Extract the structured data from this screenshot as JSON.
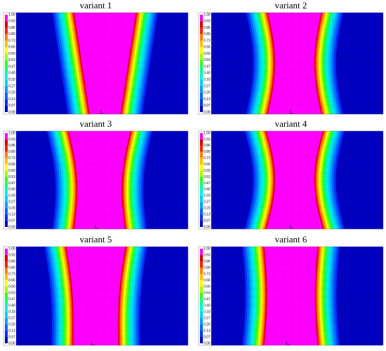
{
  "panels": [
    {
      "title": "variant 1"
    },
    {
      "title": "variant 2"
    },
    {
      "title": "variant 3"
    },
    {
      "title": "variant 4"
    },
    {
      "title": "variant 5"
    },
    {
      "title": "variant 6"
    }
  ],
  "colorbar": {
    "ticks": [
      "1.00",
      "0.93",
      "0.86",
      "0.80",
      "0.73",
      "0.66",
      "0.60",
      "0.53",
      "0.47",
      "0.40",
      "0.33",
      "0.27",
      "0.20",
      "0.13",
      "0.07",
      "0.00"
    ]
  }
}
